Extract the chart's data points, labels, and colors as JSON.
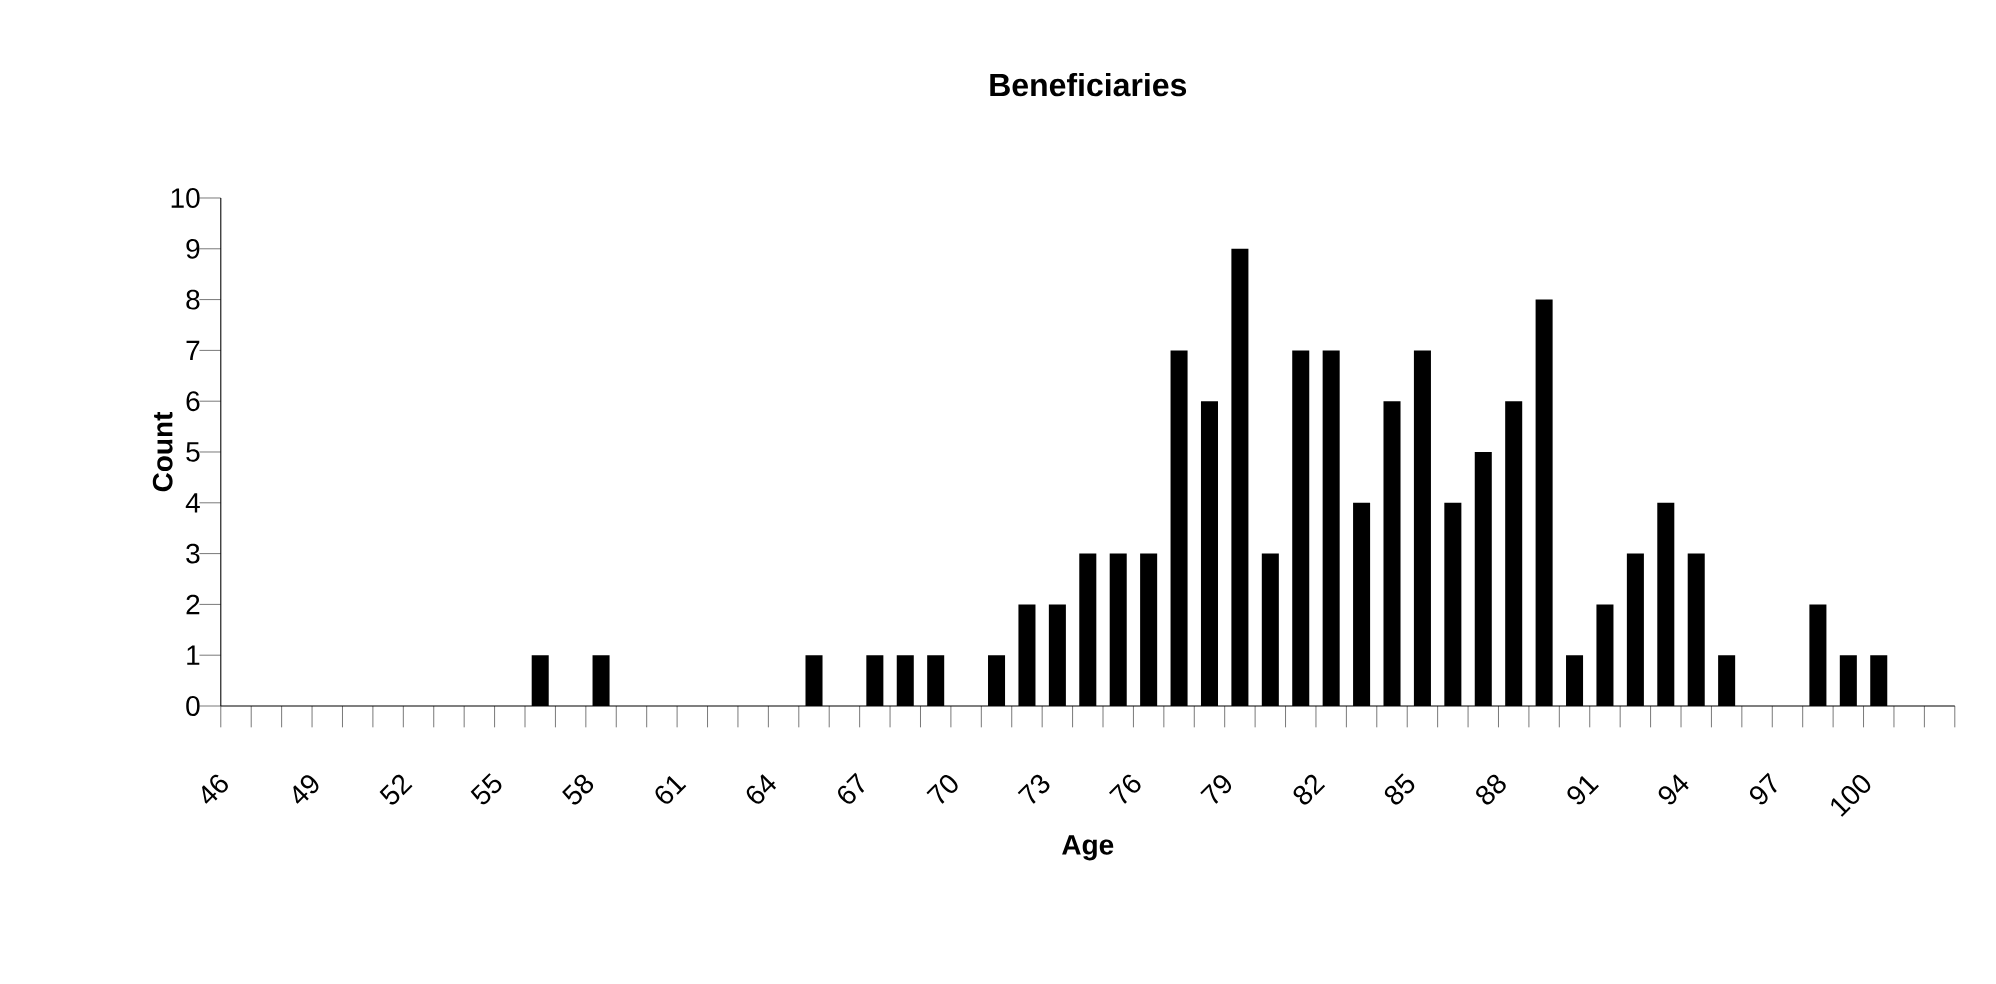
{
  "chart_data": {
    "type": "bar",
    "title": "Beneficiaries",
    "xlabel": "Age",
    "ylabel": "Count",
    "categories": [
      "46",
      null,
      null,
      "49",
      null,
      null,
      "52",
      null,
      null,
      "55",
      null,
      null,
      "58",
      null,
      null,
      "61",
      null,
      null,
      "64",
      null,
      null,
      "67",
      null,
      null,
      "70",
      null,
      null,
      "73",
      null,
      null,
      "76",
      null,
      null,
      "79",
      null,
      null,
      "82",
      null,
      null,
      "85",
      null,
      null,
      "88",
      null,
      null,
      "91",
      null,
      null,
      "94",
      null,
      null,
      "97",
      null,
      null,
      "100",
      null,
      null
    ],
    "values": [
      0,
      0,
      0,
      0,
      0,
      0,
      0,
      0,
      0,
      0,
      1,
      0,
      1,
      0,
      0,
      0,
      0,
      0,
      0,
      1,
      0,
      1,
      1,
      1,
      0,
      1,
      2,
      2,
      3,
      3,
      3,
      7,
      6,
      9,
      3,
      7,
      7,
      4,
      6,
      7,
      4,
      5,
      6,
      8,
      1,
      2,
      3,
      4,
      3,
      1,
      0,
      0,
      2,
      1,
      1,
      0,
      0
    ],
    "color": "#000000",
    "ylim": [
      0,
      10
    ],
    "yticks": [
      0,
      1,
      2,
      3,
      4,
      5,
      6,
      7,
      8,
      9,
      10
    ]
  }
}
